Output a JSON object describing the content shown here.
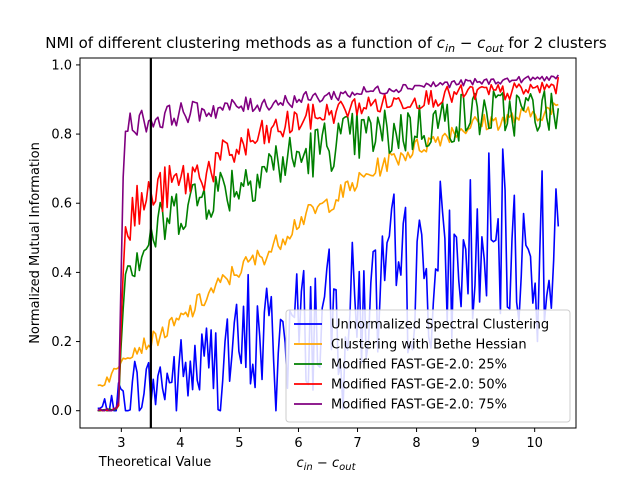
{
  "chart_data": {
    "type": "line",
    "title_prefix": "NMI of different clustering methods as a function of ",
    "title_math_base1": "c",
    "title_math_sub1": "in",
    "title_math_op": " − ",
    "title_math_base2": "c",
    "title_math_sub2": "out",
    "title_suffix": " for 2 clusters",
    "xlabel_base1": "c",
    "xlabel_sub1": "in",
    "xlabel_op": " − ",
    "xlabel_base2": "c",
    "xlabel_sub2": "out",
    "ylabel": "Normalized Mutual Information",
    "annotation": "Theoretical Value",
    "theoretical_x": 3.5,
    "xlim": [
      2.3,
      10.7
    ],
    "ylim": [
      -0.05,
      1.02
    ],
    "xticks": [
      3,
      4,
      5,
      6,
      7,
      8,
      9,
      10
    ],
    "yticks": [
      0.0,
      0.2,
      0.4,
      0.6,
      0.8,
      1.0
    ],
    "ytick_labels": [
      "0.0",
      "0.2",
      "0.4",
      "0.6",
      "0.8",
      "1.0"
    ],
    "x_start": 2.6,
    "x_end": 10.4,
    "n_points": 200,
    "legend_position": "lower-right",
    "series": [
      {
        "name": "Unnormalized Spectral Clustering",
        "color": "#0000ff",
        "anchors": [
          [
            2.6,
            0.005
          ],
          [
            2.95,
            0.005
          ],
          [
            3.0,
            0.04
          ],
          [
            3.4,
            0.07
          ],
          [
            4.0,
            0.1
          ],
          [
            4.5,
            0.14
          ],
          [
            5.0,
            0.17
          ],
          [
            5.5,
            0.21
          ],
          [
            6.0,
            0.24
          ],
          [
            6.5,
            0.27
          ],
          [
            7.0,
            0.3
          ],
          [
            7.5,
            0.33
          ],
          [
            8.0,
            0.37
          ],
          [
            8.5,
            0.4
          ],
          [
            9.0,
            0.43
          ],
          [
            9.5,
            0.44
          ],
          [
            10.0,
            0.45
          ],
          [
            10.4,
            0.46
          ]
        ],
        "noise": [
          [
            2.6,
            0.01
          ],
          [
            3.0,
            0.06
          ],
          [
            4.0,
            0.12
          ],
          [
            5.0,
            0.16
          ],
          [
            6.0,
            0.2
          ],
          [
            7.0,
            0.2
          ],
          [
            8.0,
            0.21
          ],
          [
            9.0,
            0.2
          ],
          [
            10.4,
            0.2
          ]
        ]
      },
      {
        "name": "Clustering with Bethe Hessian",
        "color": "#ffa500",
        "anchors": [
          [
            2.6,
            0.07
          ],
          [
            2.95,
            0.12
          ],
          [
            3.0,
            0.16
          ],
          [
            3.5,
            0.2
          ],
          [
            4.0,
            0.26
          ],
          [
            4.5,
            0.34
          ],
          [
            5.0,
            0.41
          ],
          [
            5.5,
            0.46
          ],
          [
            6.0,
            0.55
          ],
          [
            6.5,
            0.6
          ],
          [
            7.0,
            0.66
          ],
          [
            7.5,
            0.72
          ],
          [
            8.0,
            0.76
          ],
          [
            8.5,
            0.8
          ],
          [
            9.0,
            0.83
          ],
          [
            9.5,
            0.84
          ],
          [
            10.0,
            0.86
          ],
          [
            10.4,
            0.87
          ]
        ],
        "noise": [
          [
            2.6,
            0.015
          ],
          [
            4.0,
            0.03
          ],
          [
            7.0,
            0.03
          ],
          [
            10.4,
            0.025
          ]
        ]
      },
      {
        "name": "Modified FAST-GE-2.0: 25%",
        "color": "#008000",
        "anchors": [
          [
            2.6,
            0.0
          ],
          [
            2.95,
            0.005
          ],
          [
            3.05,
            0.42
          ],
          [
            3.5,
            0.5
          ],
          [
            4.0,
            0.59
          ],
          [
            4.5,
            0.63
          ],
          [
            5.0,
            0.66
          ],
          [
            5.5,
            0.71
          ],
          [
            6.0,
            0.73
          ],
          [
            6.5,
            0.77
          ],
          [
            7.0,
            0.79
          ],
          [
            7.5,
            0.8
          ],
          [
            8.0,
            0.82
          ],
          [
            8.5,
            0.84
          ],
          [
            9.0,
            0.86
          ],
          [
            9.5,
            0.86
          ],
          [
            10.0,
            0.87
          ],
          [
            10.4,
            0.86
          ]
        ],
        "noise": [
          [
            2.6,
            0.005
          ],
          [
            3.0,
            0.005
          ],
          [
            3.05,
            0.08
          ],
          [
            5.0,
            0.08
          ],
          [
            7.0,
            0.08
          ],
          [
            10.4,
            0.07
          ]
        ]
      },
      {
        "name": "Modified FAST-GE-2.0: 50%",
        "color": "#ff0000",
        "anchors": [
          [
            2.6,
            0.0
          ],
          [
            2.95,
            0.005
          ],
          [
            3.05,
            0.55
          ],
          [
            3.5,
            0.62
          ],
          [
            4.0,
            0.66
          ],
          [
            4.5,
            0.7
          ],
          [
            5.0,
            0.76
          ],
          [
            5.5,
            0.8
          ],
          [
            6.0,
            0.84
          ],
          [
            6.5,
            0.86
          ],
          [
            7.0,
            0.88
          ],
          [
            7.5,
            0.89
          ],
          [
            8.0,
            0.9
          ],
          [
            8.5,
            0.91
          ],
          [
            9.0,
            0.92
          ],
          [
            9.5,
            0.92
          ],
          [
            10.0,
            0.93
          ],
          [
            10.4,
            0.94
          ]
        ],
        "noise": [
          [
            2.6,
            0.005
          ],
          [
            3.0,
            0.005
          ],
          [
            3.05,
            0.08
          ],
          [
            4.5,
            0.06
          ],
          [
            7.0,
            0.03
          ],
          [
            10.4,
            0.025
          ]
        ]
      },
      {
        "name": "Modified FAST-GE-2.0: 75%",
        "color": "#800080",
        "anchors": [
          [
            2.6,
            0.0
          ],
          [
            2.95,
            0.005
          ],
          [
            3.05,
            0.83
          ],
          [
            3.5,
            0.84
          ],
          [
            4.0,
            0.86
          ],
          [
            4.5,
            0.87
          ],
          [
            5.0,
            0.88
          ],
          [
            5.5,
            0.89
          ],
          [
            6.0,
            0.9
          ],
          [
            6.5,
            0.91
          ],
          [
            7.0,
            0.92
          ],
          [
            7.5,
            0.93
          ],
          [
            8.0,
            0.94
          ],
          [
            8.5,
            0.945
          ],
          [
            9.0,
            0.95
          ],
          [
            9.5,
            0.955
          ],
          [
            10.0,
            0.96
          ],
          [
            10.4,
            0.965
          ]
        ],
        "noise": [
          [
            2.6,
            0.005
          ],
          [
            3.0,
            0.005
          ],
          [
            3.05,
            0.04
          ],
          [
            5.0,
            0.025
          ],
          [
            8.0,
            0.012
          ],
          [
            10.4,
            0.008
          ]
        ]
      }
    ]
  }
}
